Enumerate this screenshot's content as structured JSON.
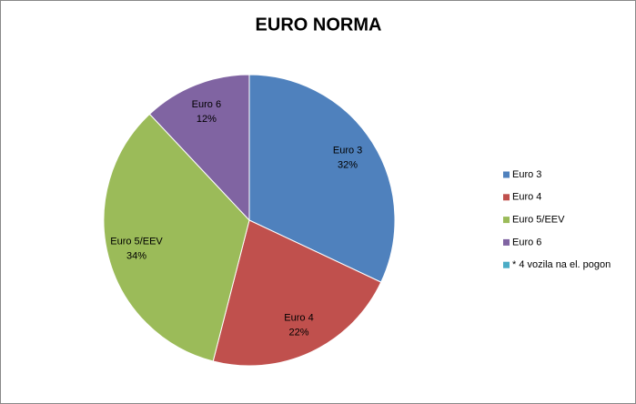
{
  "chart_data": {
    "type": "pie",
    "title": "EURO NORMA",
    "categories": [
      "Euro 3",
      "Euro 4",
      "Euro 5/EEV",
      "Euro 6",
      "* 4 vozila na el. pogon"
    ],
    "values": [
      32,
      22,
      34,
      12,
      0
    ],
    "value_labels": [
      "32%",
      "22%",
      "34%",
      "12%",
      null
    ],
    "colors": [
      "#4f81bd",
      "#c0504d",
      "#9bbb59",
      "#8064a2",
      "#4bacc6"
    ],
    "legend": "right"
  }
}
